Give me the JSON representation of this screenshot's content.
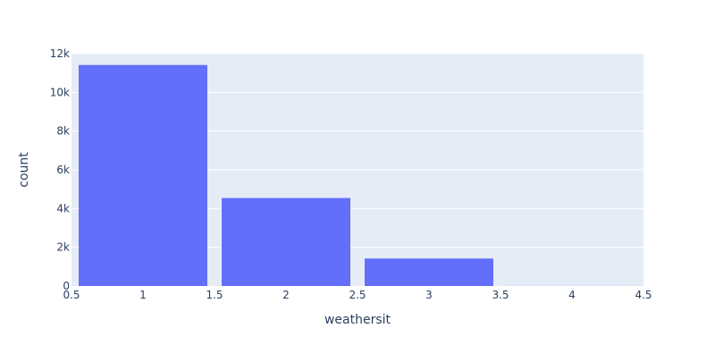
{
  "chart_data": {
    "type": "bar",
    "xlabel": "weathersit",
    "ylabel": "count",
    "x": [
      1,
      2,
      3,
      4
    ],
    "values": [
      11413,
      4544,
      1419,
      3
    ],
    "bar_width": 0.9,
    "xlim": [
      0.5,
      4.5
    ],
    "ylim": [
      0,
      12000
    ],
    "x_ticks": [
      0.5,
      1,
      1.5,
      2,
      2.5,
      3,
      3.5,
      4,
      4.5
    ],
    "x_tick_labels": [
      "0.5",
      "1",
      "1.5",
      "2",
      "2.5",
      "3",
      "3.5",
      "4",
      "4.5"
    ],
    "y_ticks": [
      0,
      2000,
      4000,
      6000,
      8000,
      10000,
      12000
    ],
    "y_tick_labels": [
      "0",
      "2k",
      "4k",
      "6k",
      "8k",
      "10k",
      "12k"
    ],
    "grid": true,
    "colors": {
      "bar": "#636efa",
      "plot_bg": "#e5ecf6",
      "grid": "#ffffff",
      "text": "#2a3f5f"
    }
  }
}
